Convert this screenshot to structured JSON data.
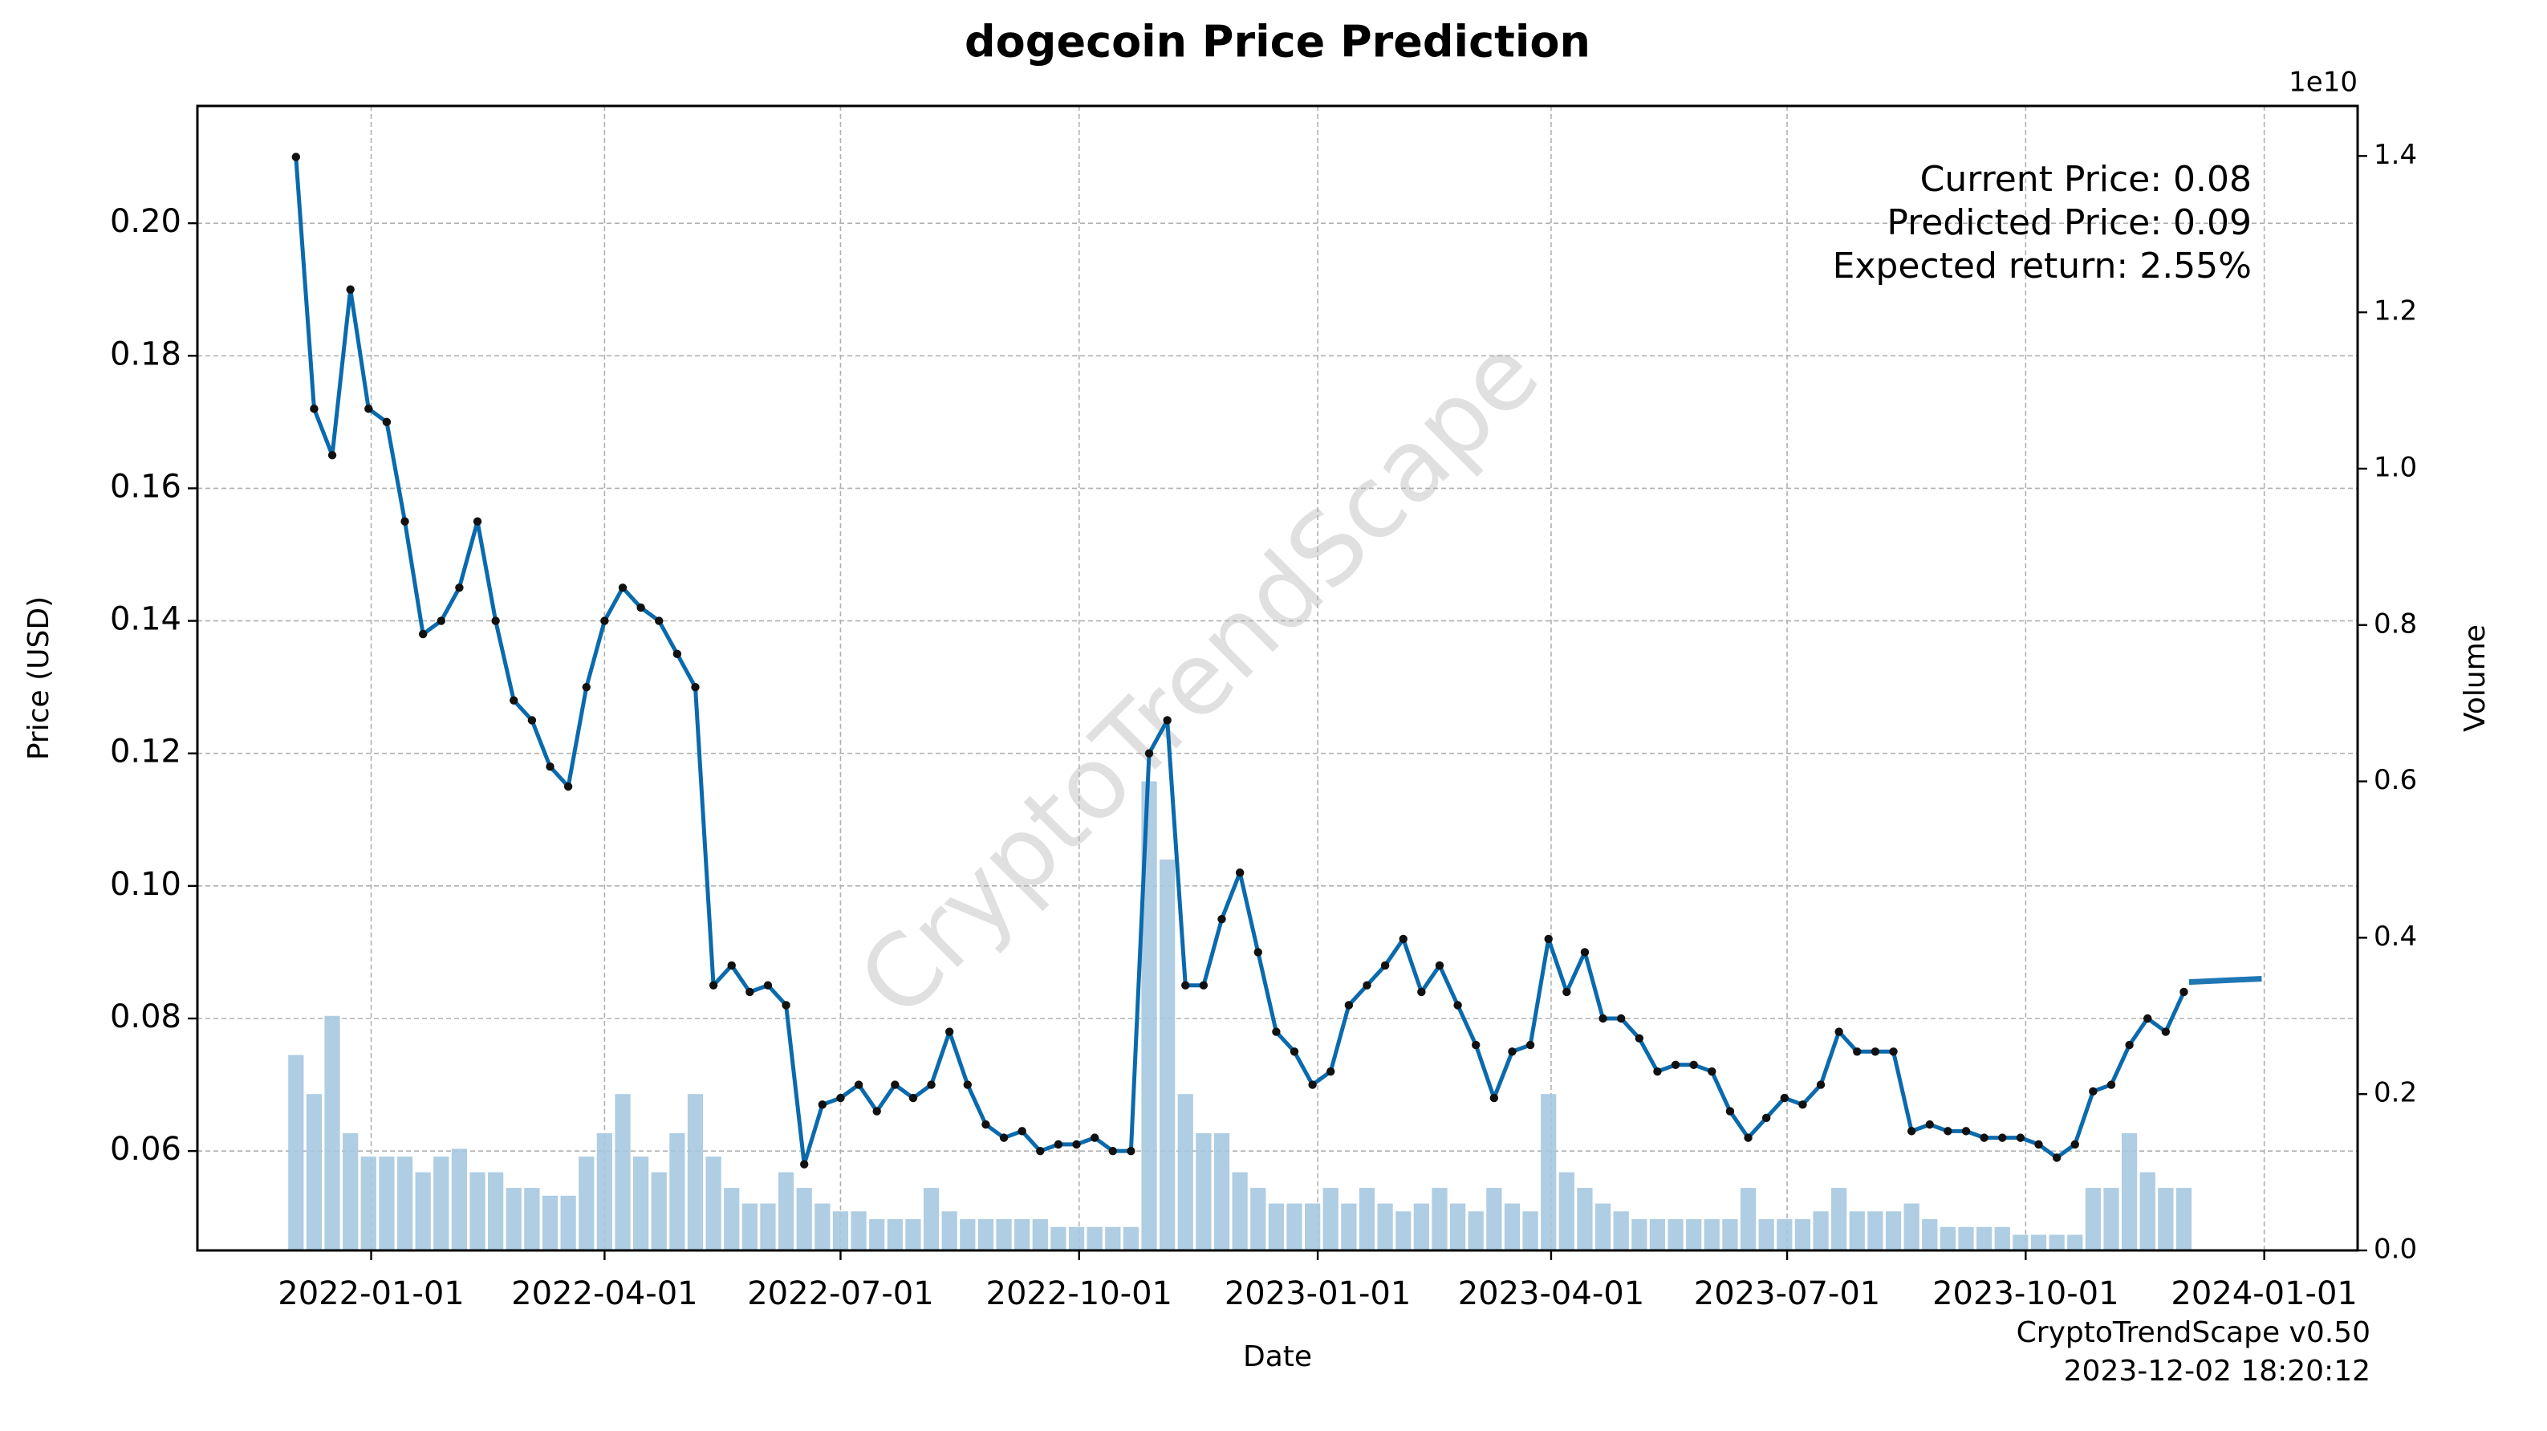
{
  "chart_data": {
    "type": "line",
    "title": "dogecoin Price Prediction",
    "x_label": "Date",
    "y_label": "Price (USD)",
    "y2_label": "Volume",
    "y2_offset_label": "1e10",
    "watermark": "CryptoTrendScape",
    "footer": [
      "CryptoTrendScape v0.50",
      "2023-12-02 18:20:12"
    ],
    "annotations": [
      "Current Price: 0.08",
      "Predicted Price: 0.09",
      "Expected return: 2.55%"
    ],
    "grid": true,
    "xlim": [
      "2021-10-26",
      "2024-02-06"
    ],
    "xticks": [
      "2022-01-01",
      "2022-04-01",
      "2022-07-01",
      "2022-10-01",
      "2023-01-01",
      "2023-04-01",
      "2023-07-01",
      "2023-10-01",
      "2024-01-01"
    ],
    "ylim": [
      0.045,
      0.2177
    ],
    "yticks": [
      0.06,
      0.08,
      {
        "value": 0.1,
        "label": "0.10"
      },
      0.12,
      0.14,
      0.16,
      0.18,
      {
        "value": 0.2,
        "label": "0.20"
      }
    ],
    "y2lim": [
      0,
      1.464
    ],
    "y2ticks": [
      {
        "value": 0,
        "label": "0.0"
      },
      0.2,
      0.4,
      0.6,
      0.8,
      {
        "value": 1,
        "label": "1.0"
      },
      1.2,
      1.4
    ],
    "x": [
      "2021-12-03",
      "2021-12-10",
      "2021-12-17",
      "2021-12-24",
      "2021-12-31",
      "2022-01-07",
      "2022-01-14",
      "2022-01-21",
      "2022-01-28",
      "2022-02-04",
      "2022-02-11",
      "2022-02-18",
      "2022-02-25",
      "2022-03-04",
      "2022-03-11",
      "2022-03-18",
      "2022-03-25",
      "2022-04-01",
      "2022-04-08",
      "2022-04-15",
      "2022-04-22",
      "2022-04-29",
      "2022-05-06",
      "2022-05-13",
      "2022-05-20",
      "2022-05-27",
      "2022-06-03",
      "2022-06-10",
      "2022-06-17",
      "2022-06-24",
      "2022-07-01",
      "2022-07-08",
      "2022-07-15",
      "2022-07-22",
      "2022-07-29",
      "2022-08-05",
      "2022-08-12",
      "2022-08-19",
      "2022-08-26",
      "2022-09-02",
      "2022-09-09",
      "2022-09-16",
      "2022-09-23",
      "2022-09-30",
      "2022-10-07",
      "2022-10-14",
      "2022-10-21",
      "2022-10-28",
      "2022-11-04",
      "2022-11-11",
      "2022-11-18",
      "2022-11-25",
      "2022-12-02",
      "2022-12-09",
      "2022-12-16",
      "2022-12-23",
      "2022-12-30",
      "2023-01-06",
      "2023-01-13",
      "2023-01-20",
      "2023-01-27",
      "2023-02-03",
      "2023-02-10",
      "2023-02-17",
      "2023-02-24",
      "2023-03-03",
      "2023-03-10",
      "2023-03-17",
      "2023-03-24",
      "2023-03-31",
      "2023-04-07",
      "2023-04-14",
      "2023-04-21",
      "2023-04-28",
      "2023-05-05",
      "2023-05-12",
      "2023-05-19",
      "2023-05-26",
      "2023-06-02",
      "2023-06-09",
      "2023-06-16",
      "2023-06-23",
      "2023-06-30",
      "2023-07-07",
      "2023-07-14",
      "2023-07-21",
      "2023-07-28",
      "2023-08-04",
      "2023-08-11",
      "2023-08-18",
      "2023-08-25",
      "2023-09-01",
      "2023-09-08",
      "2023-09-15",
      "2023-09-22",
      "2023-09-29",
      "2023-10-06",
      "2023-10-13",
      "2023-10-20",
      "2023-10-27",
      "2023-11-03",
      "2023-11-10",
      "2023-11-17",
      "2023-11-24",
      "2023-12-01"
    ],
    "series": [
      {
        "color": "#0a6aad",
        "marker_color": "#111111",
        "values": [
          0.21,
          0.172,
          0.165,
          0.19,
          0.172,
          0.17,
          0.155,
          0.138,
          0.14,
          0.145,
          0.155,
          0.14,
          0.128,
          0.125,
          0.118,
          0.115,
          0.13,
          0.14,
          0.145,
          0.142,
          0.14,
          0.135,
          0.13,
          0.085,
          0.088,
          0.084,
          0.085,
          0.082,
          0.058,
          0.067,
          0.068,
          0.07,
          0.066,
          0.07,
          0.068,
          0.07,
          0.078,
          0.07,
          0.064,
          0.062,
          0.063,
          0.06,
          0.061,
          0.061,
          0.062,
          0.06,
          0.06,
          0.12,
          0.125,
          0.085,
          0.085,
          0.095,
          0.102,
          0.09,
          0.078,
          0.075,
          0.07,
          0.072,
          0.082,
          0.085,
          0.088,
          0.092,
          0.084,
          0.088,
          0.082,
          0.076,
          0.068,
          0.075,
          0.076,
          0.092,
          0.084,
          0.09,
          0.08,
          0.08,
          0.077,
          0.072,
          0.073,
          0.073,
          0.072,
          0.066,
          0.062,
          0.065,
          0.068,
          0.067,
          0.07,
          0.078,
          0.075,
          0.075,
          0.075,
          0.063,
          0.064,
          0.063,
          0.063,
          0.062,
          0.062,
          0.062,
          0.061,
          0.059,
          0.061,
          0.069,
          0.07,
          0.076,
          0.08,
          0.078,
          0.084
        ]
      },
      {
        "type": "bar",
        "axis": "y2",
        "color": "#a6c8e0",
        "values": [
          0.25,
          0.2,
          0.3,
          0.15,
          0.12,
          0.12,
          0.12,
          0.1,
          0.12,
          0.13,
          0.1,
          0.1,
          0.08,
          0.08,
          0.07,
          0.07,
          0.12,
          0.15,
          0.2,
          0.12,
          0.1,
          0.15,
          0.2,
          0.12,
          0.08,
          0.06,
          0.06,
          0.1,
          0.08,
          0.06,
          0.05,
          0.05,
          0.04,
          0.04,
          0.04,
          0.08,
          0.05,
          0.04,
          0.04,
          0.04,
          0.04,
          0.04,
          0.03,
          0.03,
          0.03,
          0.03,
          0.03,
          0.6,
          0.5,
          0.2,
          0.15,
          0.15,
          0.1,
          0.08,
          0.06,
          0.06,
          0.06,
          0.08,
          0.06,
          0.08,
          0.06,
          0.05,
          0.06,
          0.08,
          0.06,
          0.05,
          0.08,
          0.06,
          0.05,
          0.2,
          0.1,
          0.08,
          0.06,
          0.05,
          0.04,
          0.04,
          0.04,
          0.04,
          0.04,
          0.04,
          0.08,
          0.04,
          0.04,
          0.04,
          0.05,
          0.08,
          0.05,
          0.05,
          0.05,
          0.06,
          0.04,
          0.03,
          0.03,
          0.03,
          0.03,
          0.02,
          0.02,
          0.02,
          0.02,
          0.08,
          0.08,
          0.15,
          0.1,
          0.08,
          0.08
        ]
      }
    ],
    "forecast": {
      "color": "#1f77b4",
      "x": [
        "2023-12-03",
        "2023-12-31"
      ],
      "values": [
        0.0855,
        0.086
      ]
    }
  }
}
